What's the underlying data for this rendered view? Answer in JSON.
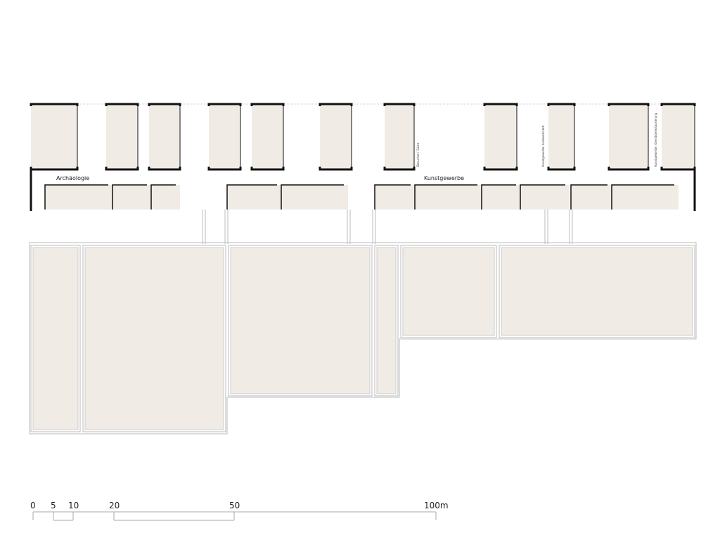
{
  "plan": {
    "labels": {
      "archaeology": "Archäologie",
      "applied_arts": "Kunstgewerbe",
      "visitors": "Besucher / Gäste",
      "woodshop": "Kunstgewerbe: Holzwerkstatt",
      "restoration": "Kunstgewerbe: Gemälderestaurierung"
    },
    "colors": {
      "room_fill": "#f1ebe5",
      "wall": "#111111",
      "outline": "#bbbbbb"
    }
  },
  "scale_bar": {
    "ticks": [
      "0",
      "5",
      "10",
      "20",
      "50",
      "100m"
    ]
  }
}
